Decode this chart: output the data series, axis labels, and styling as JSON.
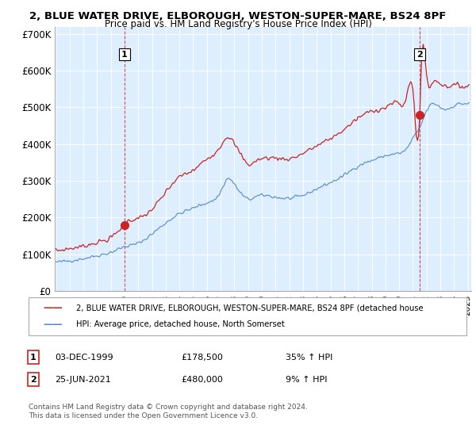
{
  "title": "2, BLUE WATER DRIVE, ELBOROUGH, WESTON-SUPER-MARE, BS24 8PF",
  "subtitle": "Price paid vs. HM Land Registry's House Price Index (HPI)",
  "background_color": "#ffffff",
  "plot_bg_color": "#ddeeff",
  "grid_color": "#ffffff",
  "ylim": [
    0,
    720000
  ],
  "yticks": [
    0,
    100000,
    200000,
    300000,
    400000,
    500000,
    600000,
    700000
  ],
  "ytick_labels": [
    "£0",
    "£100K",
    "£200K",
    "£300K",
    "£400K",
    "£500K",
    "£600K",
    "£700K"
  ],
  "purchase1": {
    "date_num": 2000.0,
    "price": 178500,
    "label": "1",
    "date_str": "03-DEC-1999",
    "pct": "35% ↑ HPI"
  },
  "purchase2": {
    "date_num": 2021.5,
    "price": 480000,
    "label": "2",
    "date_str": "25-JUN-2021",
    "pct": "9% ↑ HPI"
  },
  "red_color": "#cc2222",
  "blue_color": "#5588cc",
  "legend_label1": "2, BLUE WATER DRIVE, ELBOROUGH, WESTON-SUPER-MARE, BS24 8PF (detached house",
  "legend_label2": "HPI: Average price, detached house, North Somerset",
  "footer1": "Contains HM Land Registry data © Crown copyright and database right 2024.",
  "footer2": "This data is licensed under the Open Government Licence v3.0.",
  "table_row1": [
    "1",
    "03-DEC-1999",
    "£178,500",
    "35% ↑ HPI"
  ],
  "table_row2": [
    "2",
    "25-JUN-2021",
    "£480,000",
    "9% ↑ HPI"
  ]
}
